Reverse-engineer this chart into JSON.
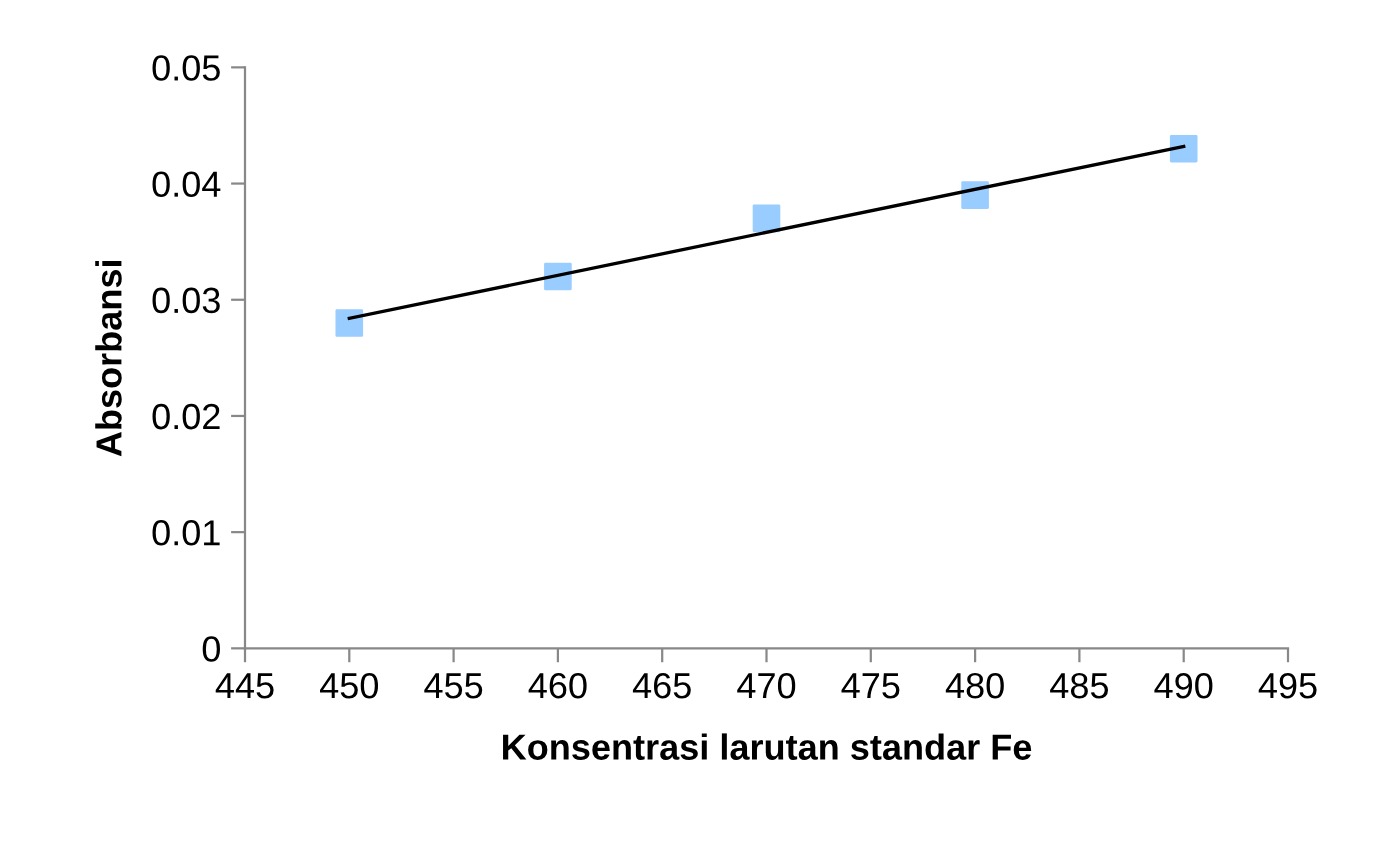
{
  "chart_data": {
    "type": "scatter",
    "xlabel": "Konsentrasi larutan standar Fe",
    "ylabel": "Absorbansi",
    "series": [
      {
        "color": "#99ccff",
        "marker": "square",
        "x": [
          450,
          460,
          470,
          480,
          490
        ],
        "values": [
          0.028,
          0.032,
          0.037,
          0.039,
          0.043
        ]
      },
      {
        "type": "line",
        "color": "#000000",
        "marker": "none",
        "x": [
          450,
          490
        ],
        "values": [
          0.0284,
          0.0432
        ]
      }
    ],
    "xlim": [
      445,
      495
    ],
    "xticks": [
      445,
      450,
      455,
      460,
      465,
      470,
      475,
      480,
      485,
      490,
      495
    ],
    "ylim": [
      0,
      0.05
    ],
    "yticks": [
      0,
      0.01,
      0.02,
      0.03,
      0.04,
      0.05
    ],
    "grid": false,
    "legend": false
  }
}
